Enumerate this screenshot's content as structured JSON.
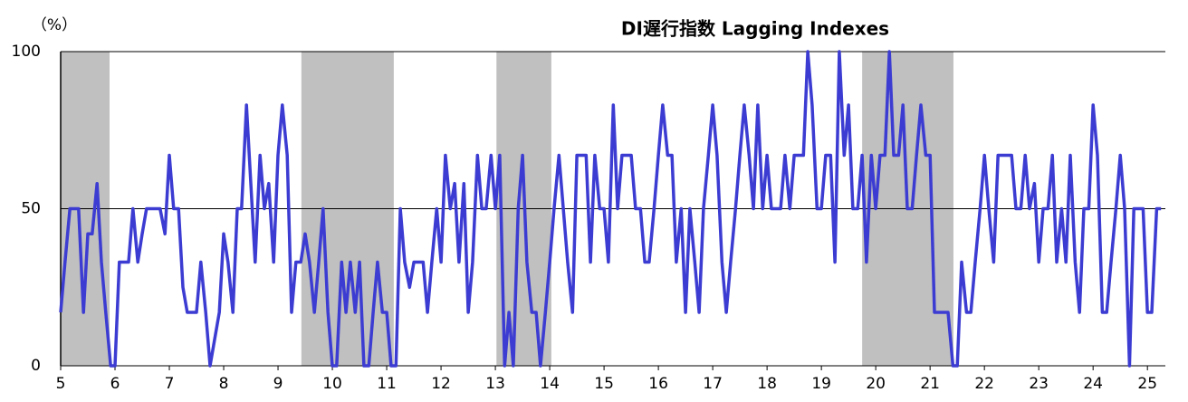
{
  "chart_data": {
    "type": "line",
    "title": "DI遅行指数 Lagging Indexes",
    "y_label": "（%）",
    "x": [
      5,
      5.08,
      5.17,
      5.25,
      5.33,
      5.42,
      5.5,
      5.58,
      5.67,
      5.75,
      5.83,
      5.92,
      6,
      6.08,
      6.17,
      6.25,
      6.33,
      6.42,
      6.5,
      6.58,
      6.67,
      6.75,
      6.83,
      6.92,
      7,
      7.08,
      7.17,
      7.25,
      7.33,
      7.42,
      7.5,
      7.58,
      7.67,
      7.75,
      7.83,
      7.92,
      8,
      8.08,
      8.17,
      8.25,
      8.33,
      8.42,
      8.5,
      8.58,
      8.67,
      8.75,
      8.83,
      8.92,
      9,
      9.08,
      9.17,
      9.25,
      9.33,
      9.42,
      9.5,
      9.58,
      9.67,
      9.75,
      9.83,
      9.92,
      10,
      10.08,
      10.17,
      10.25,
      10.33,
      10.42,
      10.5,
      10.58,
      10.67,
      10.75,
      10.83,
      10.92,
      11,
      11.08,
      11.17,
      11.25,
      11.33,
      11.42,
      11.5,
      11.58,
      11.67,
      11.75,
      11.83,
      11.92,
      12,
      12.08,
      12.17,
      12.25,
      12.33,
      12.42,
      12.5,
      12.58,
      12.67,
      12.75,
      12.83,
      12.92,
      13,
      13.08,
      13.17,
      13.25,
      13.33,
      13.42,
      13.5,
      13.58,
      13.67,
      13.75,
      13.83,
      13.92,
      14,
      14.08,
      14.17,
      14.25,
      14.33,
      14.42,
      14.5,
      14.58,
      14.67,
      14.75,
      14.83,
      14.92,
      15,
      15.08,
      15.17,
      15.25,
      15.33,
      15.42,
      15.5,
      15.58,
      15.67,
      15.75,
      15.83,
      15.92,
      16,
      16.08,
      16.17,
      16.25,
      16.33,
      16.42,
      16.5,
      16.58,
      16.67,
      16.75,
      16.83,
      16.92,
      17,
      17.08,
      17.17,
      17.25,
      17.33,
      17.42,
      17.5,
      17.58,
      17.67,
      17.75,
      17.83,
      17.92,
      18,
      18.08,
      18.17,
      18.25,
      18.33,
      18.42,
      18.5,
      18.58,
      18.67,
      18.75,
      18.83,
      18.92,
      19,
      19.08,
      19.17,
      19.25,
      19.33,
      19.42,
      19.5,
      19.58,
      19.67,
      19.75,
      19.83,
      19.92,
      20,
      20.08,
      20.17,
      20.25,
      20.33,
      20.42,
      20.5,
      20.58,
      20.67,
      20.75,
      20.83,
      20.92,
      21,
      21.08,
      21.17,
      21.25,
      21.33,
      21.42,
      21.5,
      21.58,
      21.67,
      21.75,
      21.83,
      21.92,
      22,
      22.08,
      22.17,
      22.25,
      22.33,
      22.42,
      22.5,
      22.58,
      22.67,
      22.75,
      22.83,
      22.92,
      23,
      23.08,
      23.17,
      23.25,
      23.33,
      23.42,
      23.5,
      23.58,
      23.67,
      23.75,
      23.83,
      23.92,
      24,
      24.08,
      24.17,
      24.25,
      24.33,
      24.42,
      24.5,
      24.58,
      24.67,
      24.75,
      24.83,
      24.92,
      25,
      25.08,
      25.17,
      25.25
    ],
    "series": [
      {
        "name": "DI",
        "color": "#3c3cd2",
        "values": [
          17,
          33,
          50,
          50,
          50,
          17,
          42,
          42,
          58,
          33,
          17,
          0,
          0,
          33,
          33,
          33,
          50,
          33,
          42,
          50,
          50,
          50,
          50,
          42,
          67,
          50,
          50,
          25,
          17,
          17,
          17,
          33,
          17,
          0,
          8,
          17,
          42,
          33,
          17,
          50,
          50,
          83,
          58,
          33,
          67,
          50,
          58,
          33,
          67,
          83,
          67,
          17,
          33,
          33,
          42,
          33,
          17,
          33,
          50,
          17,
          0,
          0,
          33,
          17,
          33,
          17,
          33,
          0,
          0,
          17,
          33,
          17,
          17,
          0,
          0,
          50,
          33,
          25,
          33,
          33,
          33,
          17,
          33,
          50,
          33,
          67,
          50,
          58,
          33,
          58,
          17,
          33,
          67,
          50,
          50,
          67,
          50,
          67,
          0,
          17,
          0,
          50,
          67,
          33,
          17,
          17,
          0,
          17,
          33,
          50,
          67,
          50,
          33,
          17,
          67,
          67,
          67,
          33,
          67,
          50,
          50,
          33,
          83,
          50,
          67,
          67,
          67,
          50,
          50,
          33,
          33,
          50,
          67,
          83,
          67,
          67,
          33,
          50,
          17,
          50,
          33,
          17,
          50,
          67,
          83,
          67,
          33,
          17,
          33,
          50,
          67,
          83,
          67,
          50,
          83,
          50,
          67,
          50,
          50,
          50,
          67,
          50,
          67,
          67,
          67,
          100,
          83,
          50,
          50,
          67,
          67,
          33,
          100,
          67,
          83,
          50,
          50,
          67,
          33,
          67,
          50,
          67,
          67,
          100,
          67,
          67,
          83,
          50,
          50,
          67,
          83,
          67,
          67,
          17,
          17,
          17,
          17,
          0,
          0,
          33,
          17,
          17,
          33,
          50,
          67,
          50,
          33,
          67,
          67,
          67,
          67,
          50,
          50,
          67,
          50,
          58,
          33,
          50,
          50,
          67,
          33,
          50,
          33,
          67,
          33,
          17,
          50,
          50,
          83,
          67,
          17,
          17,
          33,
          50,
          67,
          50,
          0,
          50,
          50,
          50,
          17,
          17,
          50,
          50
        ]
      }
    ],
    "shaded_periods": [
      [
        5,
        5.9
      ],
      [
        9.43,
        11.13
      ],
      [
        13.02,
        14.03
      ],
      [
        19.75,
        21.43
      ]
    ],
    "shade_color": "#c0c0c0",
    "xlim": [
      5,
      25.33
    ],
    "xticks": [
      5,
      6,
      7,
      8,
      9,
      10,
      11,
      12,
      13,
      14,
      15,
      16,
      17,
      18,
      19,
      20,
      21,
      22,
      23,
      24,
      25
    ],
    "ylim": [
      0,
      100
    ],
    "yticks": [
      0,
      50,
      100
    ],
    "grid": true
  }
}
